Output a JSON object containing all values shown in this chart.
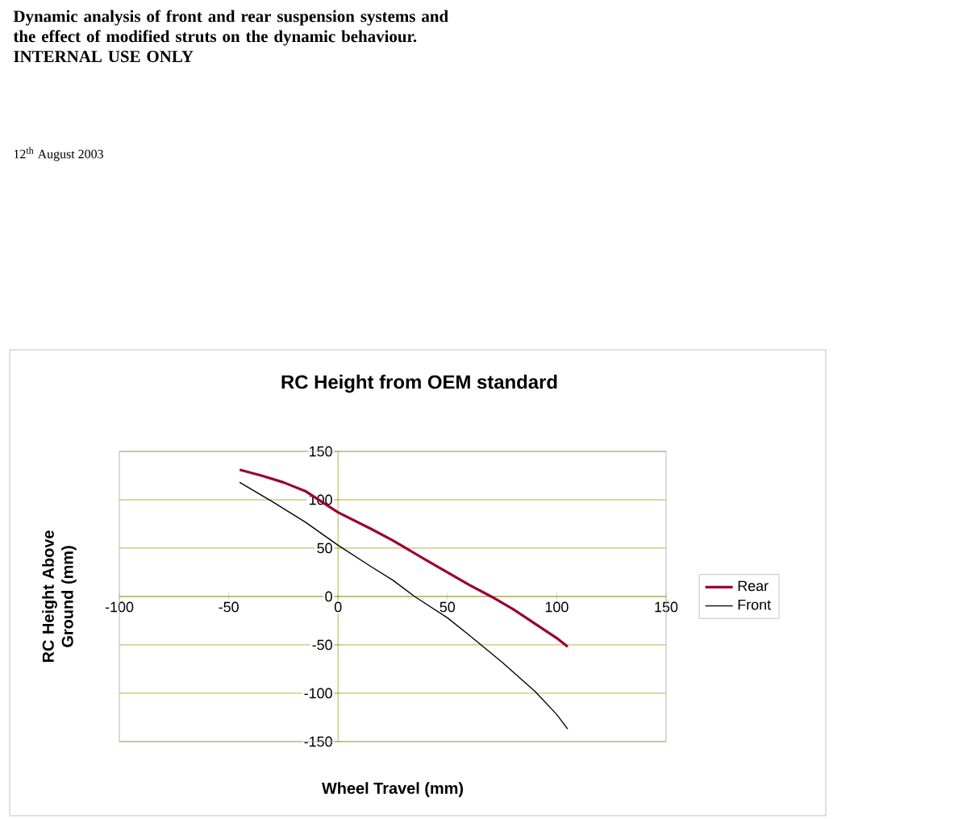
{
  "chart_data": {
    "type": "line",
    "title": "RC Height from OEM standard",
    "annotations": [
      "Dynamic analysis of front and rear suspension systems and the effect of modified struts on the dynamic behaviour. INTERNAL USE ONLY",
      "12$^{th}$ August 2003"
    ],
    "xlabel": "Wheel Travel (mm)",
    "ylabel": "RC Height Above Ground (mm)",
    "xlim": [
      -100,
      150
    ],
    "xticks": [
      -100,
      -50,
      0,
      50,
      100,
      150
    ],
    "ylim": [
      -150,
      150
    ],
    "yticks": [
      -150,
      -100,
      -50,
      0,
      50,
      100,
      150
    ],
    "grid": "y",
    "legend": "right",
    "marker": "none",
    "series": [
      {
        "name": "Rear",
        "color": "#990033",
        "x": [
          -45,
          -35,
          -25,
          -15,
          0,
          15,
          25,
          40,
          50,
          60,
          70,
          80,
          90,
          100,
          105
        ],
        "values": [
          131,
          125,
          118,
          109,
          87,
          70,
          58,
          38,
          25,
          12,
          0,
          -13,
          -28,
          -43,
          -52
        ]
      },
      {
        "name": "Front",
        "color": "#000000",
        "x": [
          -45,
          -30,
          -15,
          0,
          15,
          25,
          35,
          50,
          60,
          75,
          90,
          100,
          105
        ],
        "values": [
          118,
          98,
          77,
          53,
          31,
          17,
          0,
          -22,
          -40,
          -68,
          -98,
          -122,
          -137
        ]
      }
    ]
  }
}
